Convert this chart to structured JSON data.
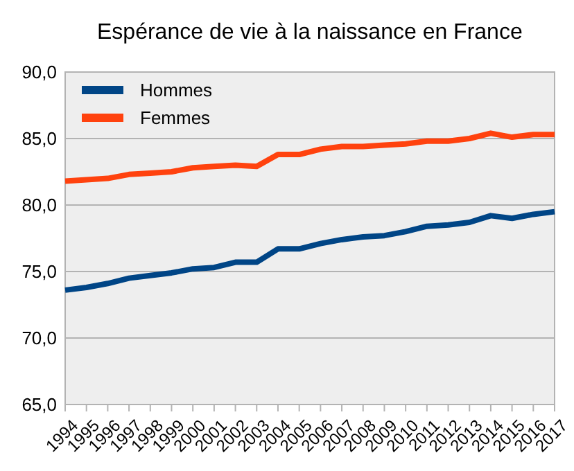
{
  "chart_data": {
    "type": "line",
    "title": "Espérance de vie à la naissance en France",
    "categories": [
      "1994",
      "1995",
      "1996",
      "1997",
      "1998",
      "1999",
      "2000",
      "2001",
      "2002",
      "2003",
      "2004",
      "2005",
      "2006",
      "2007",
      "2008",
      "2009",
      "2010",
      "2011",
      "2012",
      "2013",
      "2014",
      "2015",
      "2016",
      "2017"
    ],
    "series": [
      {
        "name": "Hommes",
        "color": "#004586",
        "values": [
          73.6,
          73.8,
          74.1,
          74.5,
          74.7,
          74.9,
          75.2,
          75.3,
          75.7,
          75.7,
          76.7,
          76.7,
          77.1,
          77.4,
          77.6,
          77.7,
          78.0,
          78.4,
          78.5,
          78.7,
          79.2,
          79.0,
          79.3,
          79.5
        ]
      },
      {
        "name": "Femmes",
        "color": "#ff420e",
        "values": [
          81.8,
          81.9,
          82.0,
          82.3,
          82.4,
          82.5,
          82.8,
          82.9,
          83.0,
          82.9,
          83.8,
          83.8,
          84.2,
          84.4,
          84.4,
          84.5,
          84.6,
          84.8,
          84.8,
          85.0,
          85.4,
          85.1,
          85.3,
          85.3
        ]
      }
    ],
    "ylim": [
      65,
      90
    ],
    "yticks": [
      {
        "value": 65,
        "label": "65,0"
      },
      {
        "value": 70,
        "label": "70,0"
      },
      {
        "value": 75,
        "label": "75,0"
      },
      {
        "value": 80,
        "label": "80,0"
      },
      {
        "value": 85,
        "label": "85,0"
      },
      {
        "value": 90,
        "label": "90,0"
      }
    ],
    "grid": "y",
    "legend": "top left",
    "marker": "none",
    "line_style": "solid"
  }
}
